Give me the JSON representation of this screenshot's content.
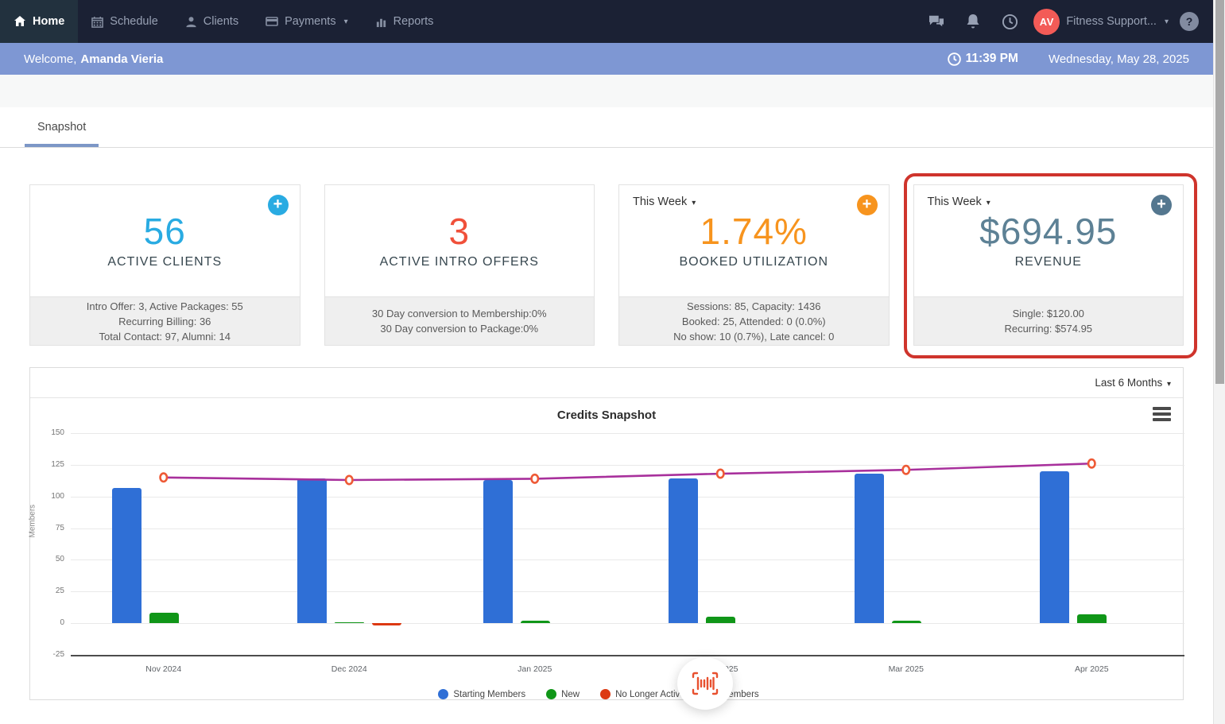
{
  "icons": {
    "caret": "▾",
    "plus": "+",
    "help": "?"
  },
  "navbar": {
    "items": [
      {
        "label": "Home",
        "active": true
      },
      {
        "label": "Schedule",
        "active": false
      },
      {
        "label": "Clients",
        "active": false
      },
      {
        "label": "Payments",
        "active": false,
        "dropdown": true
      },
      {
        "label": "Reports",
        "active": false
      }
    ],
    "account": {
      "avatar_initials": "AV",
      "avatar_color": "#f35b57",
      "name": "Fitness Support..."
    }
  },
  "welcome_bar": {
    "greeting": "Welcome,",
    "user_name": "Amanda Vieria",
    "time": "11:39 PM",
    "date": "Wednesday, May 28, 2025",
    "bar_color": "#7e97d3"
  },
  "tabs": {
    "snapshot": "Snapshot"
  },
  "stat_cards": [
    {
      "value": "56",
      "label": "ACTIVE CLIENTS",
      "value_color": "#29abe2",
      "add_color": "#29abe2",
      "details": [
        "Intro Offer: 3, Active Packages: 55",
        "Recurring Billing: 36",
        "Total Contact: 97, Alumni: 14"
      ]
    },
    {
      "value": "3",
      "label": "ACTIVE INTRO OFFERS",
      "value_color": "#f0503a",
      "details": [
        "30 Day conversion to Membership:0%",
        "30 Day conversion to Package:0%"
      ]
    },
    {
      "period": "This Week",
      "value": "1.74%",
      "label": "BOOKED UTILIZATION",
      "value_color": "#f7941e",
      "add_color": "#f7941e",
      "details": [
        "Sessions: 85, Capacity: 1436",
        "Booked: 25, Attended: 0 (0.0%)",
        "No show: 10 (0.7%), Late cancel: 0"
      ]
    },
    {
      "period": "This Week",
      "value": "$694.95",
      "label": "REVENUE",
      "value_color": "#5d8195",
      "add_color": "#54778f",
      "highlighted": true,
      "highlight_color": "#cf342c",
      "details": [
        "Single: $120.00",
        "Recurring: $574.95"
      ]
    }
  ],
  "chart_panel": {
    "range_selector": "Last 6 Months"
  },
  "chart_data": {
    "type": "bar",
    "title": "Credits Snapshot",
    "ylabel": "Members",
    "categories": [
      "Nov 2024",
      "Dec 2024",
      "Jan 2025",
      "Feb 2025",
      "Mar 2025",
      "Apr 2025"
    ],
    "series": [
      {
        "name": "Starting Members",
        "type": "bar",
        "color": "#2f6fd6",
        "values": [
          107,
          114,
          113,
          114,
          118,
          120
        ]
      },
      {
        "name": "New",
        "type": "bar",
        "color": "#109618",
        "values": [
          8,
          1,
          2,
          5,
          2,
          7
        ]
      },
      {
        "name": "No Longer Active",
        "type": "bar",
        "color": "#dc3912",
        "values": [
          0,
          -2,
          0,
          0,
          0,
          0
        ]
      },
      {
        "name": "Members",
        "type": "line",
        "color": "#a8309c",
        "marker_color": "#ee5a36",
        "values": [
          115,
          113,
          114,
          118,
          121,
          126
        ]
      }
    ],
    "ylim": [
      -25,
      150
    ],
    "yticks": [
      150,
      125,
      100,
      75,
      50,
      25,
      0,
      -25
    ],
    "grid": true,
    "legend_position": "bottom"
  },
  "loading_overlay": {
    "icon": "barcode-scan",
    "color": "#e8502f"
  }
}
